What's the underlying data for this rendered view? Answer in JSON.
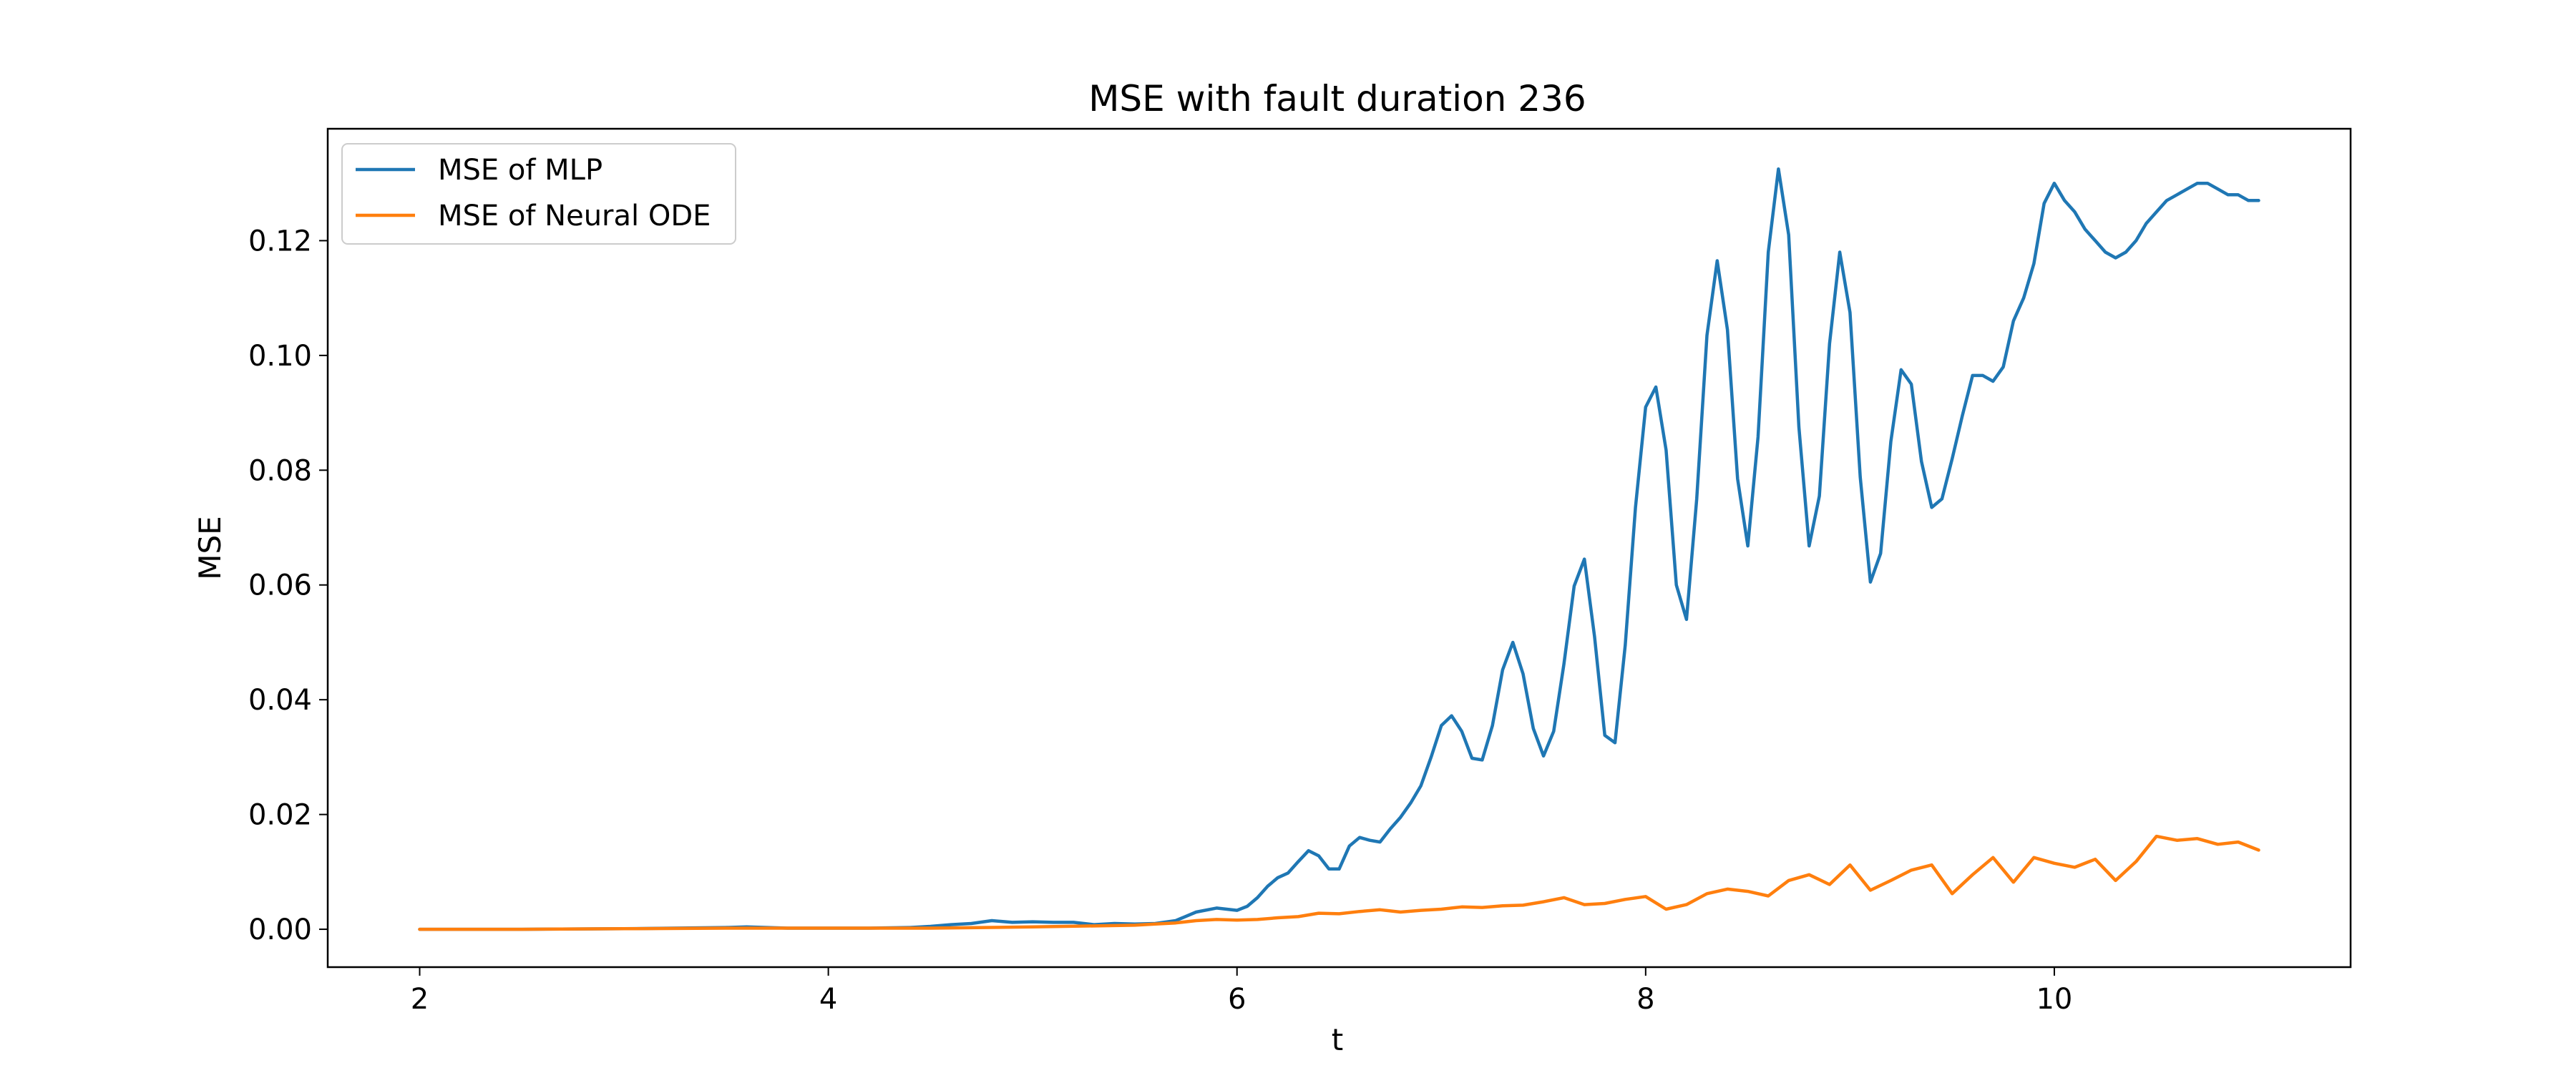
{
  "chart_data": {
    "type": "line",
    "title": "MSE with fault duration 236",
    "xlabel": "t",
    "ylabel": "MSE",
    "xlim": [
      1.55,
      11.45
    ],
    "ylim": [
      -0.0066,
      0.1395
    ],
    "xticks": [
      2,
      4,
      6,
      8,
      10
    ],
    "xtick_labels": [
      "2",
      "4",
      "6",
      "8",
      "10"
    ],
    "yticks": [
      0.0,
      0.02,
      0.04,
      0.06,
      0.08,
      0.1,
      0.12
    ],
    "ytick_labels": [
      "0.00",
      "0.02",
      "0.04",
      "0.06",
      "0.08",
      "0.10",
      "0.12"
    ],
    "grid": false,
    "legend_position": "upper left",
    "series": [
      {
        "name": "MSE of MLP",
        "color": "#1f77b4",
        "x": [
          2.0,
          2.5,
          3.0,
          3.5,
          3.6,
          3.7,
          3.8,
          4.0,
          4.2,
          4.4,
          4.5,
          4.6,
          4.7,
          4.8,
          4.9,
          5.0,
          5.1,
          5.2,
          5.3,
          5.4,
          5.5,
          5.6,
          5.7,
          5.8,
          5.9,
          6.0,
          6.05,
          6.1,
          6.15,
          6.2,
          6.25,
          6.3,
          6.35,
          6.4,
          6.45,
          6.5,
          6.55,
          6.6,
          6.65,
          6.7,
          6.75,
          6.8,
          6.85,
          6.9,
          6.95,
          7.0,
          7.05,
          7.1,
          7.15,
          7.2,
          7.25,
          7.3,
          7.35,
          7.4,
          7.45,
          7.5,
          7.55,
          7.6,
          7.65,
          7.7,
          7.75,
          7.8,
          7.85,
          7.9,
          7.95,
          8.0,
          8.05,
          8.1,
          8.15,
          8.2,
          8.25,
          8.3,
          8.35,
          8.4,
          8.45,
          8.5,
          8.55,
          8.6,
          8.65,
          8.7,
          8.75,
          8.8,
          8.85,
          8.9,
          8.95,
          9.0,
          9.05,
          9.1,
          9.15,
          9.2,
          9.25,
          9.3,
          9.35,
          9.4,
          9.45,
          9.5,
          9.55,
          9.6,
          9.65,
          9.7,
          9.75,
          9.8,
          9.85,
          9.9,
          9.95,
          10.0,
          10.05,
          10.1,
          10.15,
          10.2,
          10.25,
          10.3,
          10.35,
          10.4,
          10.45,
          10.5,
          10.55,
          10.6,
          10.65,
          10.7,
          10.75,
          10.8,
          10.85,
          10.9,
          10.95,
          11.0
        ],
        "y": [
          0.0,
          0.0,
          0.0001,
          0.0003,
          0.0004,
          0.0003,
          0.0002,
          0.0002,
          0.0002,
          0.0003,
          0.0005,
          0.0008,
          0.001,
          0.0015,
          0.0012,
          0.0013,
          0.0012,
          0.0012,
          0.0008,
          0.001,
          0.0009,
          0.001,
          0.0015,
          0.003,
          0.0037,
          0.0033,
          0.004,
          0.0055,
          0.0075,
          0.009,
          0.0098,
          0.0118,
          0.0137,
          0.0128,
          0.0105,
          0.0105,
          0.0145,
          0.016,
          0.0155,
          0.0152,
          0.0175,
          0.0195,
          0.022,
          0.025,
          0.03,
          0.0355,
          0.0372,
          0.0345,
          0.0298,
          0.0295,
          0.0355,
          0.0452,
          0.05,
          0.0445,
          0.035,
          0.0302,
          0.0345,
          0.0462,
          0.0598,
          0.0645,
          0.051,
          0.0338,
          0.0325,
          0.0495,
          0.0735,
          0.091,
          0.0945,
          0.0835,
          0.06,
          0.054,
          0.075,
          0.1035,
          0.1165,
          0.1045,
          0.0785,
          0.0668,
          0.0858,
          0.118,
          0.1325,
          0.121,
          0.0875,
          0.0668,
          0.0755,
          0.102,
          0.118,
          0.1075,
          0.0788,
          0.0605,
          0.0655,
          0.085,
          0.0975,
          0.095,
          0.0815,
          0.0735,
          0.075,
          0.082,
          0.0895,
          0.0965,
          0.0965,
          0.0955,
          0.098,
          0.106,
          0.11,
          0.116,
          0.1265,
          0.13,
          0.127,
          0.125,
          0.122,
          0.12,
          0.118,
          0.117,
          0.118,
          0.12,
          0.123,
          0.125,
          0.127,
          0.128,
          0.129,
          0.13,
          0.13,
          0.129,
          0.128,
          0.128,
          0.127,
          0.127
        ]
      },
      {
        "name": "MSE of Neural ODE",
        "color": "#ff7f0e",
        "x": [
          2.0,
          2.5,
          3.0,
          3.5,
          4.0,
          4.5,
          5.0,
          5.5,
          5.6,
          5.7,
          5.8,
          5.9,
          6.0,
          6.1,
          6.2,
          6.3,
          6.4,
          6.5,
          6.6,
          6.7,
          6.8,
          6.9,
          7.0,
          7.1,
          7.2,
          7.3,
          7.4,
          7.5,
          7.6,
          7.7,
          7.8,
          7.9,
          8.0,
          8.1,
          8.2,
          8.3,
          8.4,
          8.5,
          8.6,
          8.7,
          8.8,
          8.9,
          9.0,
          9.1,
          9.2,
          9.3,
          9.4,
          9.5,
          9.6,
          9.7,
          9.8,
          9.9,
          10.0,
          10.1,
          10.2,
          10.3,
          10.4,
          10.5,
          10.6,
          10.7,
          10.8,
          10.9,
          11.0
        ],
        "y": [
          0.0,
          0.0,
          0.0001,
          0.0002,
          0.0002,
          0.0002,
          0.0004,
          0.0007,
          0.0009,
          0.0011,
          0.0015,
          0.0017,
          0.0016,
          0.0017,
          0.002,
          0.0022,
          0.0028,
          0.0027,
          0.0031,
          0.0034,
          0.003,
          0.0033,
          0.0035,
          0.0039,
          0.0038,
          0.0041,
          0.0042,
          0.0048,
          0.0055,
          0.0043,
          0.0045,
          0.0052,
          0.0057,
          0.0035,
          0.0043,
          0.0062,
          0.007,
          0.0066,
          0.0058,
          0.0085,
          0.0095,
          0.0078,
          0.0112,
          0.0068,
          0.0085,
          0.0103,
          0.0112,
          0.0062,
          0.0095,
          0.0125,
          0.0082,
          0.0125,
          0.0115,
          0.0108,
          0.0122,
          0.0085,
          0.0118,
          0.0162,
          0.0155,
          0.0158,
          0.0148,
          0.0152,
          0.0138
        ]
      }
    ]
  }
}
